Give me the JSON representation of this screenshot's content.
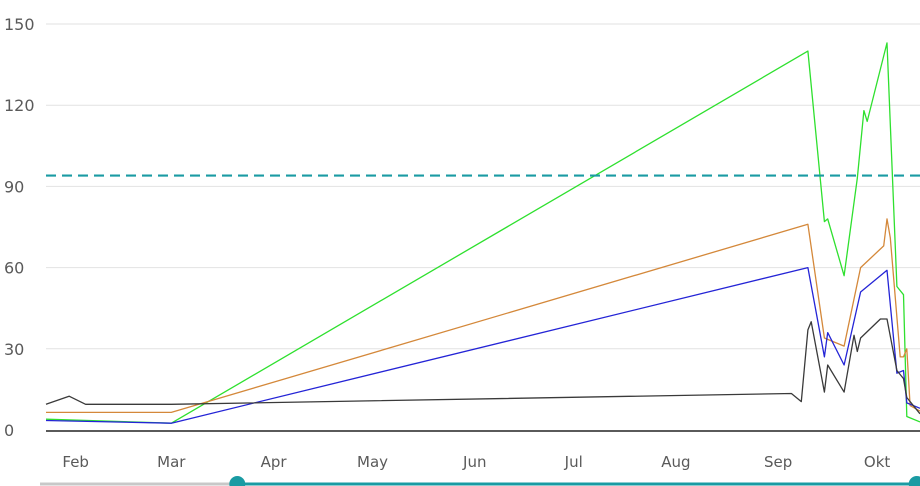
{
  "chart_data": {
    "type": "line",
    "title": "",
    "xlabel": "",
    "ylabel": "",
    "ylim": [
      0,
      150
    ],
    "yticks": [
      "0",
      "30",
      "60",
      "90",
      "120",
      "150"
    ],
    "xticks": [
      {
        "label": "Feb",
        "date": "2024-02-01"
      },
      {
        "label": "Mar",
        "date": "2024-03-01"
      },
      {
        "label": "Apr",
        "date": "2024-04-01"
      },
      {
        "label": "May",
        "date": "2024-05-01"
      },
      {
        "label": "Jun",
        "date": "2024-06-01"
      },
      {
        "label": "Jul",
        "date": "2024-07-01"
      },
      {
        "label": "Aug",
        "date": "2024-08-01"
      },
      {
        "label": "Sep",
        "date": "2024-09-01"
      },
      {
        "label": "Okt",
        "date": "2024-10-01"
      }
    ],
    "xlim": [
      "2024-01-23",
      "2024-10-14"
    ],
    "grid": true,
    "legend": "none",
    "reference_line": {
      "value": 94,
      "color": "#1a9ba3",
      "style": "dashed"
    },
    "series": [
      {
        "color": "#2ee02e",
        "points": [
          [
            "2024-01-23",
            4
          ],
          [
            "2024-03-01",
            2.5
          ],
          [
            "2024-09-10",
            140
          ],
          [
            "2024-09-15",
            77
          ],
          [
            "2024-09-16",
            78
          ],
          [
            "2024-09-21",
            57
          ],
          [
            "2024-09-25",
            93
          ],
          [
            "2024-09-27",
            118
          ],
          [
            "2024-09-28",
            114
          ],
          [
            "2024-10-04",
            143
          ],
          [
            "2024-10-07",
            53
          ],
          [
            "2024-10-09",
            50
          ],
          [
            "2024-10-10",
            5
          ],
          [
            "2024-10-14",
            3
          ]
        ]
      },
      {
        "color": "#d4883a",
        "points": [
          [
            "2024-01-23",
            6.5
          ],
          [
            "2024-03-01",
            6.5
          ],
          [
            "2024-09-10",
            76
          ],
          [
            "2024-09-15",
            34
          ],
          [
            "2024-09-21",
            31
          ],
          [
            "2024-09-26",
            60
          ],
          [
            "2024-10-03",
            68
          ],
          [
            "2024-10-04",
            78
          ],
          [
            "2024-10-05",
            71
          ],
          [
            "2024-10-08",
            27
          ],
          [
            "2024-10-09",
            27
          ],
          [
            "2024-10-10",
            30
          ],
          [
            "2024-10-11",
            9
          ],
          [
            "2024-10-14",
            7
          ]
        ]
      },
      {
        "color": "#2424d6",
        "points": [
          [
            "2024-01-23",
            3.5
          ],
          [
            "2024-03-01",
            2.5
          ],
          [
            "2024-09-10",
            60
          ],
          [
            "2024-09-15",
            27
          ],
          [
            "2024-09-16",
            36
          ],
          [
            "2024-09-21",
            24
          ],
          [
            "2024-09-26",
            51
          ],
          [
            "2024-10-04",
            59
          ],
          [
            "2024-10-07",
            21
          ],
          [
            "2024-10-09",
            22
          ],
          [
            "2024-10-10",
            10
          ],
          [
            "2024-10-14",
            8
          ]
        ]
      },
      {
        "color": "#3a3a3a",
        "points": [
          [
            "2024-01-23",
            9.5
          ],
          [
            "2024-01-30",
            12.5
          ],
          [
            "2024-02-04",
            9.5
          ],
          [
            "2024-03-01",
            9.5
          ],
          [
            "2024-09-05",
            13.5
          ],
          [
            "2024-09-08",
            10.5
          ],
          [
            "2024-09-10",
            37
          ],
          [
            "2024-09-11",
            40
          ],
          [
            "2024-09-15",
            14
          ],
          [
            "2024-09-16",
            24
          ],
          [
            "2024-09-21",
            14
          ],
          [
            "2024-09-24",
            35
          ],
          [
            "2024-09-25",
            29
          ],
          [
            "2024-09-26",
            34
          ],
          [
            "2024-10-02",
            41
          ],
          [
            "2024-10-04",
            41
          ],
          [
            "2024-10-07",
            22
          ],
          [
            "2024-10-09",
            19
          ],
          [
            "2024-10-10",
            12
          ],
          [
            "2024-10-14",
            6
          ]
        ]
      }
    ],
    "range_selector": {
      "start": "2024-03-21",
      "end": "2024-10-13",
      "color": "#1a9ba3",
      "track_color": "#c8c8c8"
    }
  }
}
